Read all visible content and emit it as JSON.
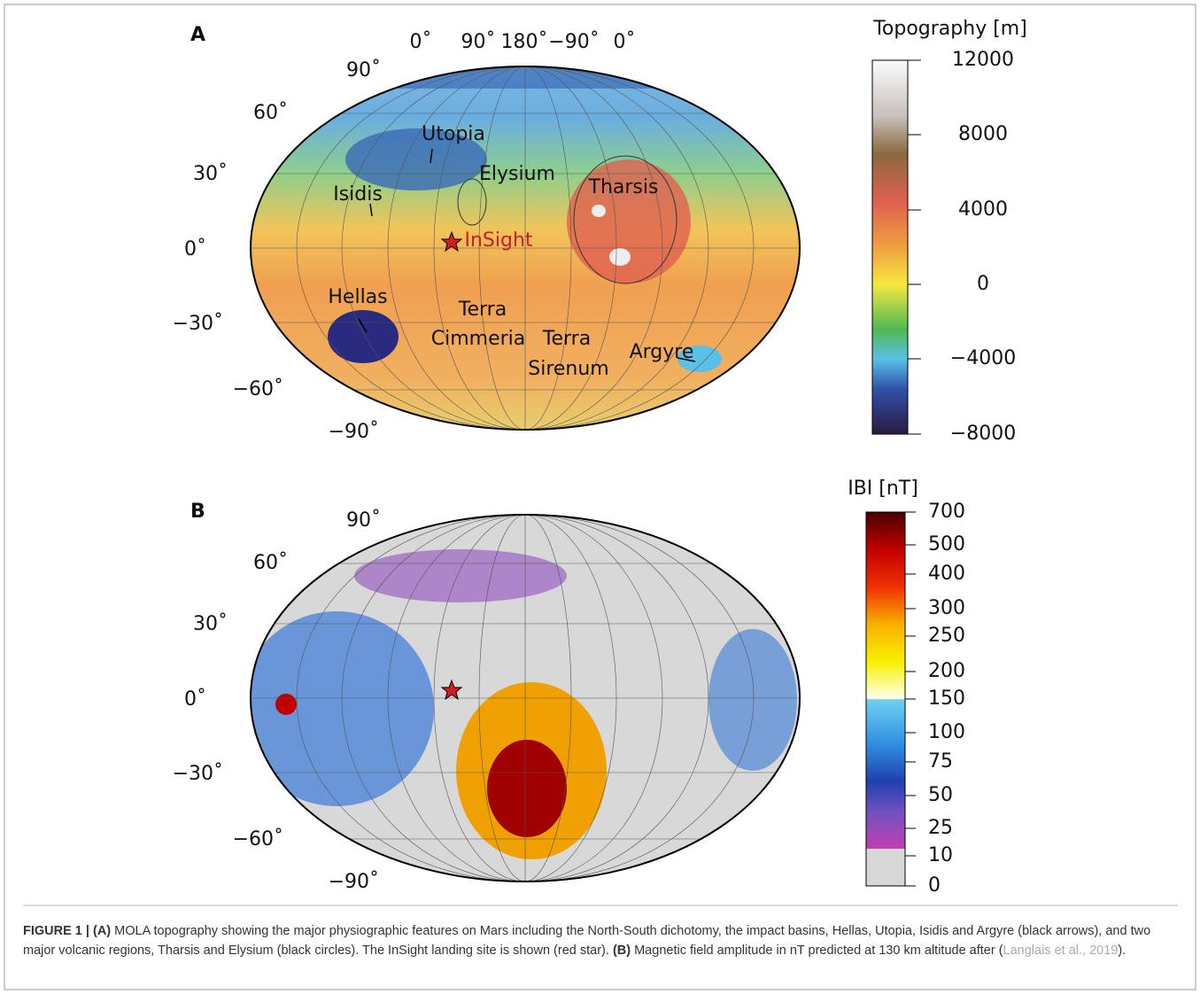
{
  "panel_a": {
    "label": "A",
    "longitudes": [
      "0˚",
      "90˚",
      "180˚",
      "−90˚",
      "0˚"
    ],
    "latitudes": [
      "90˚",
      "60˚",
      "30˚",
      "0˚",
      "−30˚",
      "−60˚",
      "−90˚"
    ],
    "features": [
      "Utopia",
      "Elysium",
      "Tharsis",
      "Isidis",
      "InSight",
      "Hellas",
      "Terra",
      "Cimmeria",
      "Terra",
      "Sirenum",
      "Argyre"
    ],
    "colorbar": {
      "title": "Topography [m]",
      "ticks": [
        "12000",
        "8000",
        "4000",
        "0",
        "−4000",
        "−8000"
      ]
    }
  },
  "panel_b": {
    "label": "B",
    "latitudes": [
      "90˚",
      "60˚",
      "30˚",
      "0˚",
      "−30˚",
      "−60˚",
      "−90˚"
    ],
    "colorbar": {
      "title": "IBI [nT]",
      "ticks": [
        "700",
        "500",
        "400",
        "300",
        "250",
        "200",
        "150",
        "100",
        "75",
        "50",
        "25",
        "10",
        "0"
      ]
    }
  },
  "caption": {
    "figure": "FIGURE 1 | ",
    "a": "(A)",
    "text_a": " MOLA topography showing the major physiographic features on Mars including the North-South dichotomy, the impact basins, Hellas, Utopia, Isidis and Argyre (black arrows), and two major volcanic regions, Tharsis and Elysium (black circles). The InSight landing site is shown (red star). ",
    "b": "(B)",
    "text_b": " Magnetic field amplitude in nT predicted at 130 km altitude after (",
    "citation": "Langlais et al., 2019",
    "end": ")."
  }
}
